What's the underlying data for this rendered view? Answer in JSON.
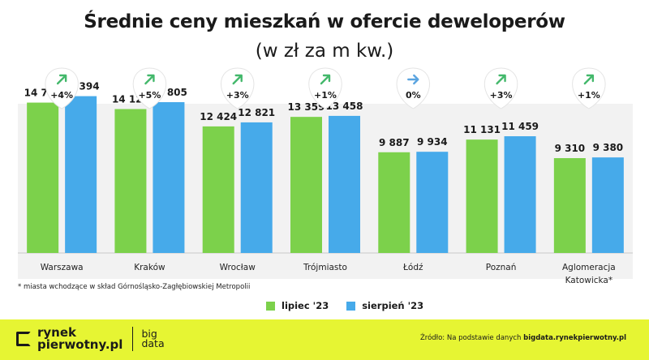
{
  "chart_data": {
    "type": "bar",
    "title": "Średnie ceny mieszkań w ofercie deweloperów",
    "subtitle": "(w zł za m kw.)",
    "categories": [
      "Warszawa",
      "Kraków",
      "Wrocław",
      "Trójmiasto",
      "Łódź",
      "Poznań",
      "Aglomeracja Katowicka*"
    ],
    "category_lines": [
      [
        "Warszawa"
      ],
      [
        "Kraków"
      ],
      [
        "Wrocław"
      ],
      [
        "Trójmiasto"
      ],
      [
        "Łódź"
      ],
      [
        "Poznań"
      ],
      [
        "Aglomeracja",
        "Katowicka*"
      ]
    ],
    "series": [
      {
        "name": "lipiec '23",
        "color": "#7cd14b",
        "values": [
          14760,
          14127,
          12424,
          13359,
          9887,
          11131,
          9310
        ]
      },
      {
        "name": "sierpień '23",
        "color": "#46aaea",
        "values": [
          15394,
          14805,
          12821,
          13458,
          9934,
          11459,
          9380
        ]
      }
    ],
    "value_labels": [
      [
        "14 760",
        "14 127",
        "12 424",
        "13 359",
        "9 887",
        "11 131",
        "9 310"
      ],
      [
        "15 394",
        "14 805",
        "12 821",
        "13 458",
        "9 934",
        "11 459",
        "9 380"
      ]
    ],
    "changes": [
      "+4%",
      "+5%",
      "+3%",
      "+1%",
      "0%",
      "+3%",
      "+1%"
    ],
    "change_directions": [
      "up",
      "up",
      "up",
      "up",
      "flat",
      "up",
      "up"
    ],
    "arrow_colors": {
      "up": "#43b86b",
      "flat": "#5aa4e0"
    },
    "ylim": [
      0,
      19500
    ],
    "legend_placement": "bottom-center"
  },
  "footnote": "* miasta wchodzące w skład Górnośląsko-Zagłębiowskiej Metropolii",
  "footer": {
    "brand_line1": "rynek",
    "brand_line2": "pierwotny.pl",
    "big_line1": "big",
    "big_line2": "data",
    "source_prefix": "Źródło: Na podstawie danych",
    "source_domain": "bigdata.rynekpierwotny.pl",
    "background": "#e6f533"
  }
}
